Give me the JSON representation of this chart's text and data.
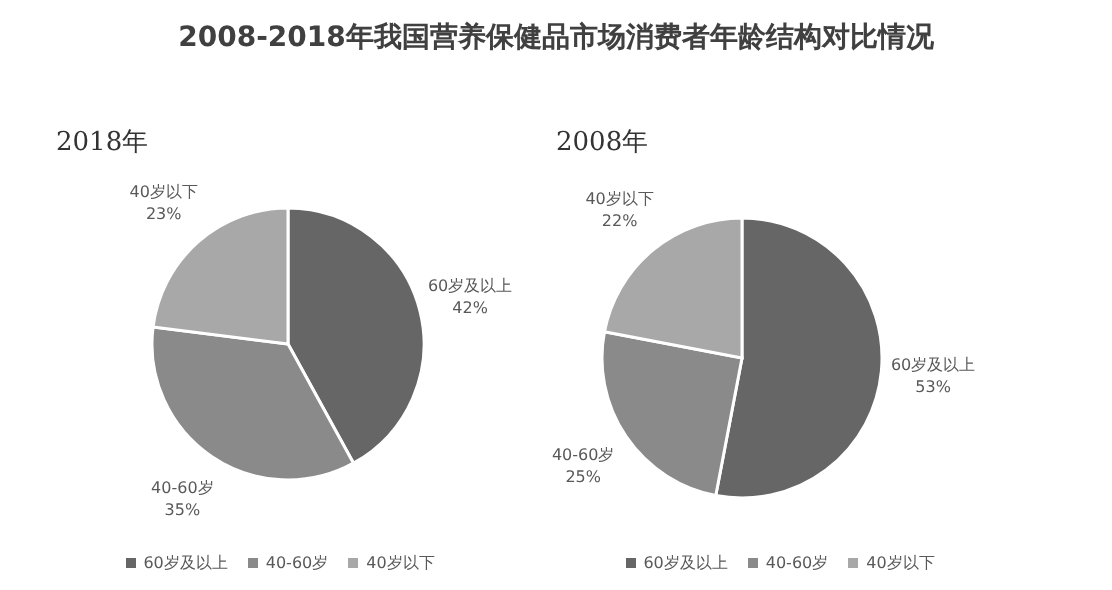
{
  "chart_data": [
    {
      "type": "pie",
      "title": "2008-2018年我国营养保健品市场消费者年龄结构对比情况",
      "subtitle": "2018年",
      "categories": [
        "60岁及以上",
        "40-60岁",
        "40岁以下"
      ],
      "values": [
        42,
        35,
        23
      ],
      "value_labels": [
        "42%",
        "35%",
        "23%"
      ],
      "colors": [
        "#666666",
        "#8a8a8a",
        "#a8a8a8"
      ],
      "legend": "bottom"
    },
    {
      "type": "pie",
      "subtitle": "2008年",
      "categories": [
        "60岁及以上",
        "40-60岁",
        "40岁以下"
      ],
      "values": [
        53,
        25,
        22
      ],
      "value_labels": [
        "53%",
        "25%",
        "22%"
      ],
      "colors": [
        "#666666",
        "#8a8a8a",
        "#a8a8a8"
      ],
      "legend": "bottom"
    }
  ]
}
